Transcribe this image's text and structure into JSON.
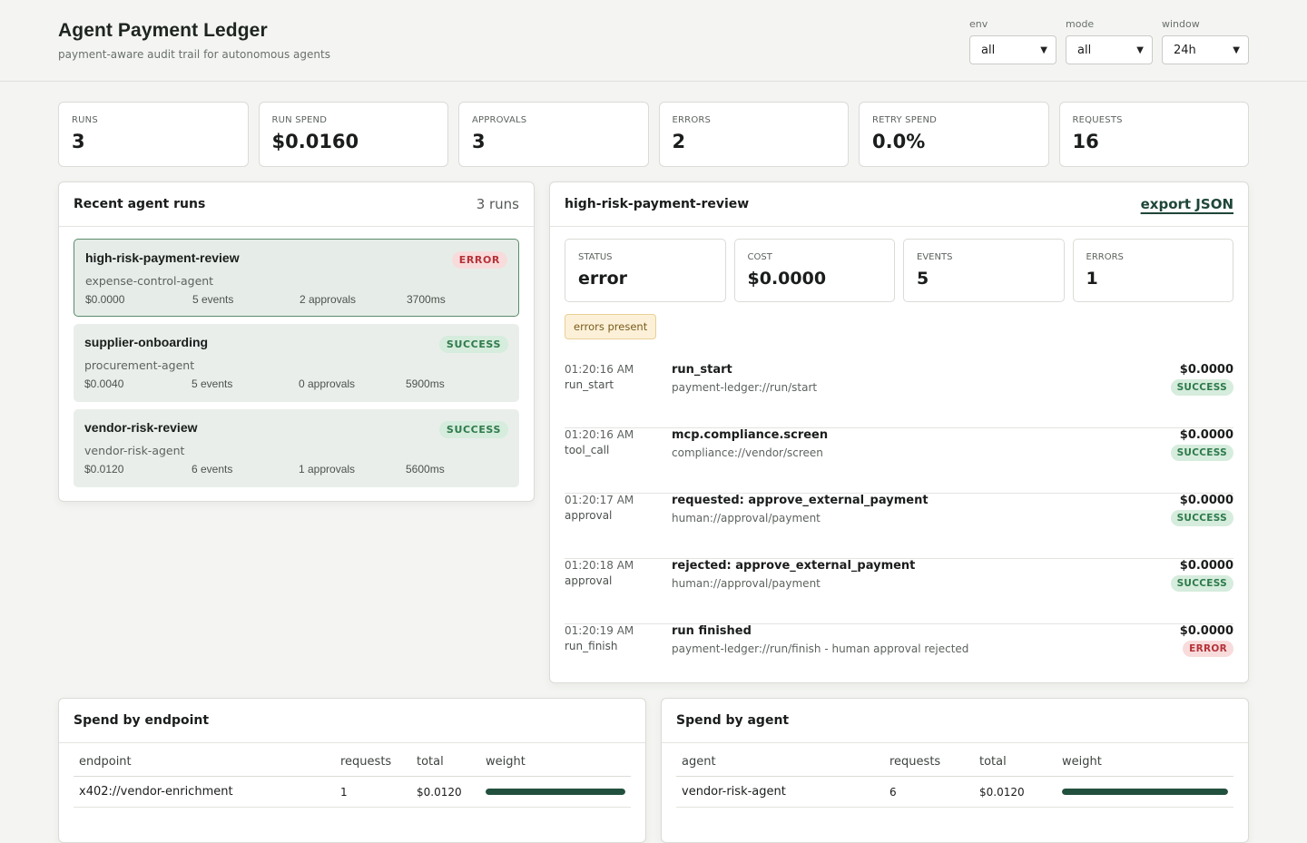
{
  "header": {
    "title": "Agent Payment Ledger",
    "subtitle": "payment-aware audit trail for autonomous agents"
  },
  "filters": [
    {
      "label": "env",
      "value": "all"
    },
    {
      "label": "mode",
      "value": "all"
    },
    {
      "label": "window",
      "value": "24h"
    }
  ],
  "stats": [
    {
      "label": "RUNS",
      "value": "3"
    },
    {
      "label": "RUN SPEND",
      "value": "$0.0160"
    },
    {
      "label": "APPROVALS",
      "value": "3"
    },
    {
      "label": "ERRORS",
      "value": "2"
    },
    {
      "label": "RETRY SPEND",
      "value": "0.0%"
    },
    {
      "label": "REQUESTS",
      "value": "16"
    }
  ],
  "runs_panel": {
    "title": "Recent agent runs",
    "count": "3 runs",
    "runs": [
      {
        "name": "high-risk-payment-review",
        "agent": "expense-control-agent",
        "status": "ERROR",
        "cost": "$0.0000",
        "events": "5 events",
        "approvals": "2 approvals",
        "duration": "3700ms"
      },
      {
        "name": "supplier-onboarding",
        "agent": "procurement-agent",
        "status": "SUCCESS",
        "cost": "$0.0040",
        "events": "5 events",
        "approvals": "0 approvals",
        "duration": "5900ms"
      },
      {
        "name": "vendor-risk-review",
        "agent": "vendor-risk-agent",
        "status": "SUCCESS",
        "cost": "$0.0120",
        "events": "6 events",
        "approvals": "1 approvals",
        "duration": "5600ms"
      }
    ]
  },
  "detail": {
    "title": "high-risk-payment-review",
    "export_label": "export JSON",
    "mini_stats": [
      {
        "label": "STATUS",
        "value": "error"
      },
      {
        "label": "COST",
        "value": "$0.0000"
      },
      {
        "label": "EVENTS",
        "value": "5"
      },
      {
        "label": "ERRORS",
        "value": "1"
      }
    ],
    "warning": "errors present",
    "events": [
      {
        "time": "01:20:16 AM",
        "kind": "run_start",
        "title": "run_start",
        "uri": "payment-ledger://run/start",
        "amount": "$0.0000",
        "status": "SUCCESS"
      },
      {
        "time": "01:20:16 AM",
        "kind": "tool_call",
        "title": "mcp.compliance.screen",
        "uri": "compliance://vendor/screen",
        "amount": "$0.0000",
        "status": "SUCCESS"
      },
      {
        "time": "01:20:17 AM",
        "kind": "approval",
        "title": "requested: approve_external_payment",
        "uri": "human://approval/payment",
        "amount": "$0.0000",
        "status": "SUCCESS"
      },
      {
        "time": "01:20:18 AM",
        "kind": "approval",
        "title": "rejected: approve_external_payment",
        "uri": "human://approval/payment",
        "amount": "$0.0000",
        "status": "SUCCESS"
      },
      {
        "time": "01:20:19 AM",
        "kind": "run_finish",
        "title": "run finished",
        "uri": "payment-ledger://run/finish - human approval rejected",
        "amount": "$0.0000",
        "status": "ERROR"
      }
    ]
  },
  "spend_endpoint": {
    "title": "Spend by endpoint",
    "columns": [
      "endpoint",
      "requests",
      "total",
      "weight"
    ],
    "rows": [
      {
        "name": "x402://vendor-enrichment",
        "requests": "1",
        "total": "$0.0120",
        "weight": 1.0
      }
    ]
  },
  "spend_agent": {
    "title": "Spend by agent",
    "columns": [
      "agent",
      "requests",
      "total",
      "weight"
    ],
    "rows": [
      {
        "name": "vendor-risk-agent",
        "requests": "6",
        "total": "$0.0120",
        "weight": 1.0
      }
    ]
  }
}
